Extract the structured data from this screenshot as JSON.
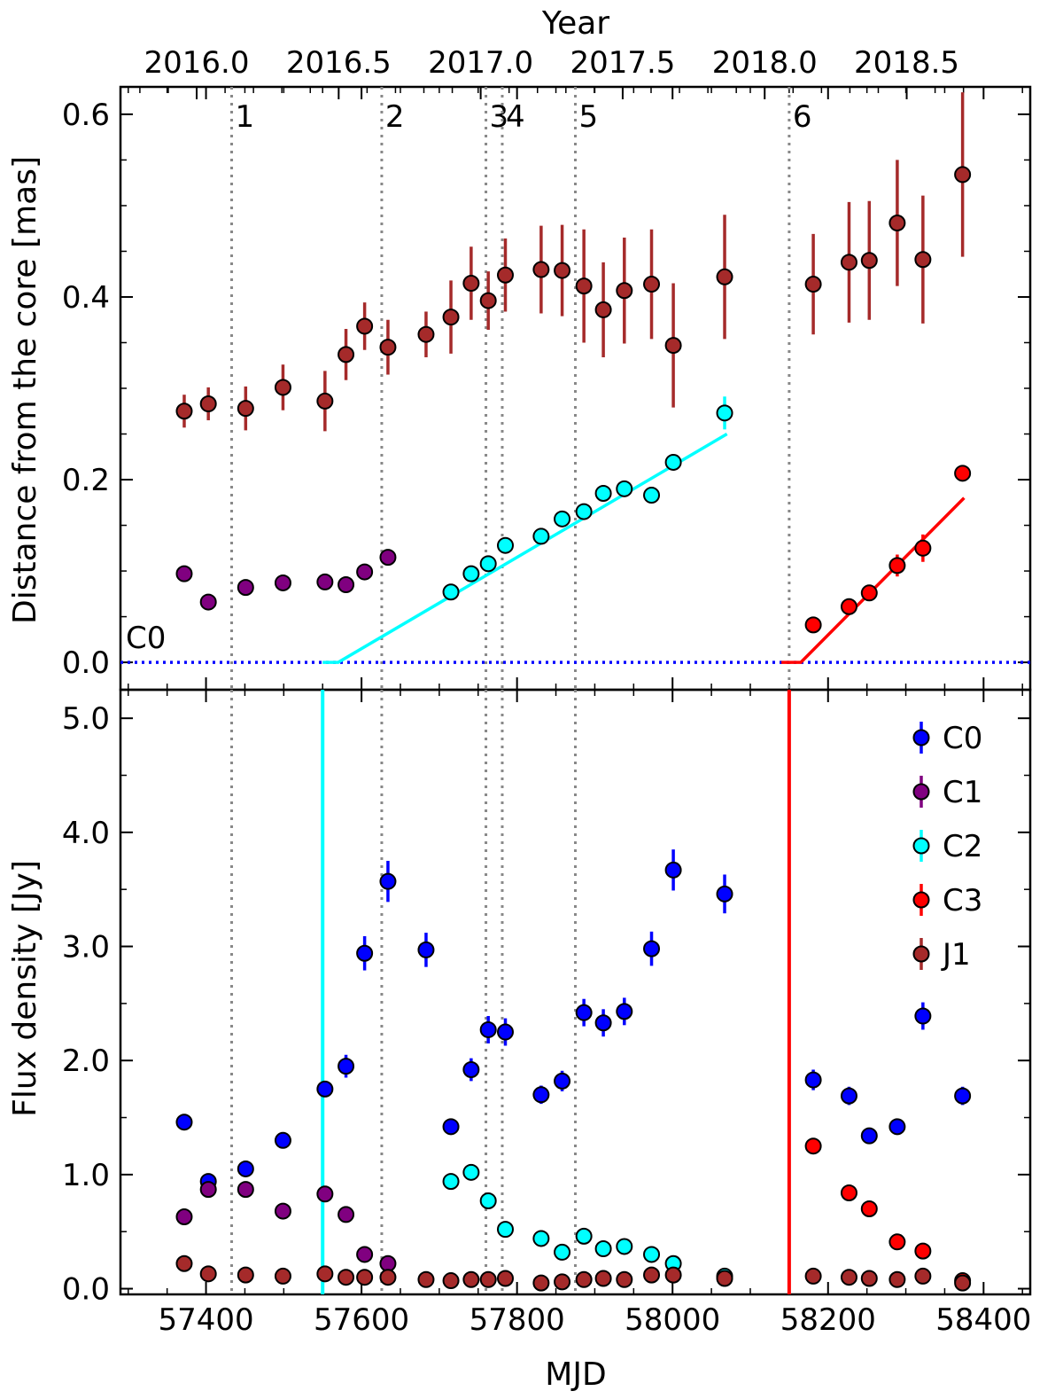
{
  "chart_data": [
    {
      "type": "scatter",
      "panel": "top",
      "xlabel": "MJD",
      "top_xlabel": "Year",
      "top_xticks": [
        2016.0,
        2016.5,
        2017.0,
        2017.5,
        2018.0,
        2018.5
      ],
      "top_xtick_labels": [
        "2016.0",
        "2016.5",
        "2017.0",
        "2017.5",
        "2018.0",
        "2018.5"
      ],
      "ylabel": "Distance from the core [mas]",
      "xlim": [
        57290,
        58460
      ],
      "ylim": [
        -0.03,
        0.63
      ],
      "yticks": [
        0.0,
        0.2,
        0.4,
        0.6
      ],
      "ytick_labels": [
        "0.0",
        "0.2",
        "0.4",
        "0.6"
      ],
      "core_label": "C0",
      "core_line": {
        "y": 0.0,
        "color": "#0000ff",
        "style": "dotted"
      },
      "events": [
        {
          "label": "1",
          "mjd": 57433
        },
        {
          "label": "2",
          "mjd": 57626
        },
        {
          "label": "3",
          "mjd": 57760
        },
        {
          "label": "4",
          "mjd": 57781
        },
        {
          "label": "5",
          "mjd": 57875
        },
        {
          "label": "6",
          "mjd": 58150
        }
      ],
      "fits": [
        {
          "name": "C2",
          "color": "#00ffff",
          "x": [
            57550,
            57570,
            58070
          ],
          "y": [
            0.0,
            0.0,
            0.25
          ]
        },
        {
          "name": "C3",
          "color": "#ff0000",
          "x": [
            58140,
            58165,
            58375
          ],
          "y": [
            0.0,
            0.0,
            0.18
          ]
        }
      ],
      "series": [
        {
          "name": "C1",
          "color": "#800080",
          "errcolor": "#800080",
          "x": [
            57372,
            57403,
            57451,
            57499,
            57553,
            57580,
            57604,
            57634
          ],
          "y": [
            0.097,
            0.066,
            0.082,
            0.087,
            0.088,
            0.085,
            0.099,
            0.115
          ],
          "err": [
            0,
            0,
            0,
            0,
            0,
            0,
            0,
            0
          ]
        },
        {
          "name": "C2",
          "color": "#00ffff",
          "errcolor": "#00ffff",
          "x": [
            57715,
            57741,
            57763,
            57785,
            57831,
            57858,
            57886,
            57911,
            57938,
            57973,
            58001,
            58067
          ],
          "y": [
            0.077,
            0.097,
            0.108,
            0.128,
            0.138,
            0.157,
            0.165,
            0.185,
            0.19,
            0.183,
            0.219,
            0.273
          ],
          "err": [
            0,
            0,
            0,
            0,
            0,
            0,
            0,
            0,
            0,
            0,
            0,
            0.018
          ]
        },
        {
          "name": "C3",
          "color": "#ff0000",
          "errcolor": "#ff0000",
          "x": [
            58181,
            58227,
            58253,
            58289,
            58322,
            58373
          ],
          "y": [
            0.041,
            0.061,
            0.076,
            0.106,
            0.125,
            0.207
          ],
          "err": [
            0,
            0,
            0,
            0.012,
            0.015,
            0
          ]
        },
        {
          "name": "J1",
          "color": "#a52a2a",
          "errcolor": "#a52a2a",
          "x": [
            57372,
            57403,
            57451,
            57499,
            57553,
            57580,
            57604,
            57634,
            57683,
            57715,
            57741,
            57763,
            57785,
            57831,
            57858,
            57886,
            57911,
            57938,
            57973,
            58001,
            58067,
            58181,
            58227,
            58253,
            58289,
            58322,
            58373
          ],
          "y": [
            0.275,
            0.283,
            0.278,
            0.301,
            0.286,
            0.337,
            0.368,
            0.345,
            0.359,
            0.378,
            0.415,
            0.396,
            0.424,
            0.43,
            0.429,
            0.412,
            0.386,
            0.407,
            0.414,
            0.347,
            0.422,
            0.414,
            0.438,
            0.44,
            0.481,
            0.441,
            0.534
          ],
          "err": [
            0.018,
            0.018,
            0.024,
            0.025,
            0.033,
            0.028,
            0.026,
            0.03,
            0.025,
            0.04,
            0.04,
            0.032,
            0.04,
            0.048,
            0.05,
            0.062,
            0.052,
            0.058,
            0.06,
            0.068,
            0.068,
            0.055,
            0.066,
            0.065,
            0.069,
            0.07,
            0.09
          ]
        }
      ]
    },
    {
      "type": "scatter",
      "panel": "bottom",
      "xlabel": "MJD",
      "ylabel": "Flux density [Jy]",
      "xlim": [
        57290,
        58460
      ],
      "ylim": [
        -0.05,
        5.25
      ],
      "yticks": [
        0.0,
        1.0,
        2.0,
        3.0,
        4.0,
        5.0
      ],
      "ytick_labels": [
        "0.0",
        "1.0",
        "2.0",
        "3.0",
        "4.0",
        "5.0"
      ],
      "xticks": [
        57400,
        57600,
        57800,
        58000,
        58200,
        58400
      ],
      "xtick_labels": [
        "57400",
        "57600",
        "57800",
        "58000",
        "58200",
        "58400"
      ],
      "vlines": [
        {
          "name": "C2",
          "x": 57550,
          "color": "#00ffff"
        },
        {
          "name": "C3",
          "x": 58150,
          "color": "#ff0000"
        }
      ],
      "legend": {
        "position": "top-right",
        "entries": [
          "C0",
          "C1",
          "C2",
          "C3",
          "J1"
        ]
      },
      "series": [
        {
          "name": "C0",
          "color": "#0000ff",
          "errcolor": "#0000ff",
          "x": [
            57372,
            57403,
            57451,
            57499,
            57553,
            57580,
            57604,
            57634,
            57683,
            57715,
            57741,
            57763,
            57785,
            57831,
            57858,
            57886,
            57911,
            57938,
            57973,
            58001,
            58067,
            58181,
            58227,
            58253,
            58289,
            58322,
            58373
          ],
          "y": [
            1.46,
            0.94,
            1.05,
            1.3,
            1.75,
            1.95,
            2.94,
            3.57,
            2.97,
            1.42,
            1.92,
            2.27,
            2.25,
            1.7,
            1.82,
            2.42,
            2.33,
            2.43,
            2.98,
            3.67,
            3.46,
            1.83,
            1.69,
            1.34,
            1.42,
            2.39,
            1.69
          ],
          "err": [
            0,
            0,
            0,
            0,
            0.07,
            0.1,
            0.15,
            0.18,
            0.15,
            0,
            0.1,
            0.12,
            0.12,
            0.08,
            0.09,
            0.12,
            0.12,
            0.12,
            0.15,
            0.18,
            0.17,
            0.09,
            0.08,
            0.07,
            0,
            0.12,
            0.08
          ]
        },
        {
          "name": "C1",
          "color": "#800080",
          "errcolor": "#800080",
          "x": [
            57372,
            57403,
            57451,
            57499,
            57553,
            57580,
            57604,
            57634
          ],
          "y": [
            0.63,
            0.87,
            0.87,
            0.68,
            0.83,
            0.65,
            0.3,
            0.22
          ],
          "err": [
            0,
            0,
            0,
            0,
            0,
            0,
            0,
            0
          ]
        },
        {
          "name": "C2",
          "color": "#00ffff",
          "errcolor": "#00ffff",
          "x": [
            57715,
            57741,
            57763,
            57785,
            57831,
            57858,
            57886,
            57911,
            57938,
            57973,
            58001,
            58067
          ],
          "y": [
            0.94,
            1.02,
            0.77,
            0.52,
            0.44,
            0.32,
            0.46,
            0.35,
            0.37,
            0.3,
            0.22,
            0.11
          ],
          "err": [
            0,
            0,
            0,
            0,
            0,
            0,
            0,
            0,
            0,
            0,
            0,
            0
          ]
        },
        {
          "name": "C3",
          "color": "#ff0000",
          "errcolor": "#ff0000",
          "x": [
            58181,
            58227,
            58253,
            58289,
            58322,
            58373
          ],
          "y": [
            1.25,
            0.84,
            0.7,
            0.41,
            0.33,
            0.07
          ],
          "err": [
            0,
            0,
            0,
            0,
            0,
            0
          ]
        },
        {
          "name": "J1",
          "color": "#a52a2a",
          "errcolor": "#a52a2a",
          "x": [
            57372,
            57403,
            57451,
            57499,
            57553,
            57580,
            57604,
            57634,
            57683,
            57715,
            57741,
            57763,
            57785,
            57831,
            57858,
            57886,
            57911,
            57938,
            57973,
            58001,
            58067,
            58181,
            58227,
            58253,
            58289,
            58322,
            58373
          ],
          "y": [
            0.22,
            0.13,
            0.12,
            0.11,
            0.13,
            0.1,
            0.1,
            0.1,
            0.08,
            0.07,
            0.08,
            0.08,
            0.09,
            0.05,
            0.06,
            0.08,
            0.09,
            0.08,
            0.12,
            0.12,
            0.09,
            0.11,
            0.1,
            0.09,
            0.08,
            0.11,
            0.05
          ],
          "err": [
            0,
            0,
            0,
            0,
            0,
            0,
            0,
            0,
            0,
            0,
            0,
            0,
            0,
            0,
            0,
            0,
            0,
            0,
            0,
            0,
            0,
            0,
            0,
            0,
            0,
            0,
            0
          ]
        }
      ]
    }
  ]
}
